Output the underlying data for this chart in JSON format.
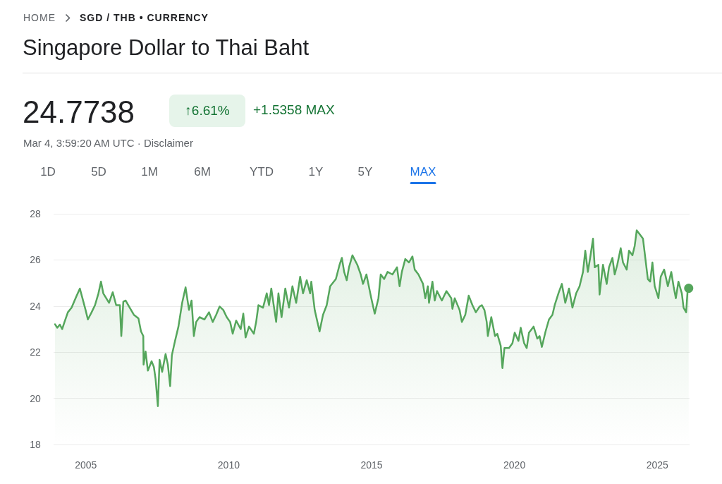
{
  "chart_data": {
    "type": "area",
    "title": "Singapore Dollar to Thai Baht",
    "annotations": [
      "HOME",
      "SGD / THB • CURRENCY",
      "24.7738",
      "↑6.61%",
      "+1.5358 MAX",
      "Mar 4, 3:59:20 AM UTC · Disclaimer",
      "1D",
      "5D",
      "1M",
      "6M",
      "YTD",
      "1Y",
      "5Y",
      "MAX"
    ],
    "x": [
      2003.92,
      2004.0,
      2004.09,
      2004.17,
      2004.25,
      2004.37,
      2004.5,
      2004.66,
      2004.79,
      2004.88,
      2004.99,
      2005.07,
      2005.2,
      2005.32,
      2005.44,
      2005.53,
      2005.61,
      2005.81,
      2005.94,
      2006.06,
      2006.19,
      2006.24,
      2006.31,
      2006.39,
      2006.51,
      2006.68,
      2006.84,
      2006.93,
      2007.01,
      2007.02,
      2007.09,
      2007.17,
      2007.3,
      2007.38,
      2007.44,
      2007.52,
      2007.58,
      2007.67,
      2007.79,
      2007.87,
      2007.95,
      2008.01,
      2008.12,
      2008.24,
      2008.37,
      2008.49,
      2008.61,
      2008.7,
      2008.78,
      2008.86,
      2008.98,
      2009.15,
      2009.31,
      2009.44,
      2009.56,
      2009.68,
      2009.81,
      2009.93,
      2010.05,
      2010.14,
      2010.26,
      2010.42,
      2010.51,
      2010.59,
      2010.71,
      2010.88,
      2010.96,
      2011.04,
      2011.2,
      2011.33,
      2011.41,
      2011.49,
      2011.66,
      2011.74,
      2011.85,
      2011.98,
      2012.11,
      2012.23,
      2012.36,
      2012.5,
      2012.6,
      2012.73,
      2012.85,
      2012.89,
      2013.01,
      2013.18,
      2013.3,
      2013.43,
      2013.55,
      2013.75,
      2013.88,
      2013.96,
      2014.04,
      2014.13,
      2014.21,
      2014.33,
      2014.5,
      2014.62,
      2014.7,
      2014.82,
      2014.99,
      2015.11,
      2015.24,
      2015.32,
      2015.44,
      2015.56,
      2015.73,
      2015.89,
      2015.98,
      2016.06,
      2016.18,
      2016.31,
      2016.43,
      2016.51,
      2016.64,
      2016.8,
      2016.88,
      2016.97,
      2017.01,
      2017.13,
      2017.21,
      2017.29,
      2017.46,
      2017.62,
      2017.79,
      2017.83,
      2017.91,
      2018.08,
      2018.16,
      2018.28,
      2018.4,
      2018.53,
      2018.65,
      2018.78,
      2018.86,
      2018.95,
      2019.03,
      2019.07,
      2019.19,
      2019.32,
      2019.4,
      2019.52,
      2019.58,
      2019.65,
      2019.81,
      2019.93,
      2020.01,
      2020.14,
      2020.22,
      2020.34,
      2020.43,
      2020.51,
      2020.67,
      2020.8,
      2020.88,
      2020.96,
      2021.09,
      2021.21,
      2021.33,
      2021.41,
      2021.54,
      2021.66,
      2021.78,
      2021.91,
      2022.03,
      2022.16,
      2022.28,
      2022.4,
      2022.48,
      2022.57,
      2022.65,
      2022.75,
      2022.81,
      2022.94,
      2022.98,
      2023.1,
      2023.23,
      2023.31,
      2023.43,
      2023.51,
      2023.6,
      2023.72,
      2023.8,
      2023.93,
      2024.01,
      2024.13,
      2024.21,
      2024.28,
      2024.38,
      2024.5,
      2024.58,
      2024.67,
      2024.75,
      2024.83,
      2024.91,
      2025.04,
      2025.12,
      2025.24,
      2025.37,
      2025.49,
      2025.57,
      2025.65,
      2025.74,
      2025.86,
      2025.92,
      2026.01,
      2026.06,
      2026.1
    ],
    "series": [
      {
        "color": "#55a65c",
        "values": [
          23.21,
          23.06,
          23.2,
          23.0,
          23.3,
          23.73,
          23.93,
          24.4,
          24.76,
          24.34,
          23.83,
          23.42,
          23.73,
          24.04,
          24.55,
          25.06,
          24.55,
          24.14,
          24.6,
          24.04,
          24.04,
          22.7,
          24.19,
          24.24,
          23.98,
          23.62,
          23.47,
          22.9,
          22.7,
          21.46,
          22.03,
          21.2,
          21.61,
          21.36,
          20.84,
          19.66,
          21.67,
          21.15,
          21.92,
          21.46,
          20.53,
          21.87,
          22.49,
          23.11,
          24.14,
          24.81,
          23.83,
          24.24,
          22.7,
          23.31,
          23.52,
          23.42,
          23.73,
          23.31,
          23.62,
          23.98,
          23.83,
          23.52,
          23.31,
          22.8,
          23.37,
          23.0,
          23.67,
          22.64,
          23.11,
          22.8,
          23.31,
          24.04,
          23.93,
          24.55,
          24.04,
          24.76,
          23.31,
          24.55,
          23.52,
          24.76,
          23.93,
          24.86,
          24.14,
          25.27,
          24.55,
          25.12,
          24.55,
          25.06,
          23.83,
          22.9,
          23.62,
          24.04,
          24.86,
          25.17,
          25.79,
          26.09,
          25.48,
          25.12,
          25.68,
          26.2,
          25.79,
          25.37,
          24.96,
          25.37,
          24.34,
          23.67,
          24.34,
          25.37,
          25.17,
          25.48,
          25.37,
          25.68,
          24.86,
          25.48,
          26.04,
          25.89,
          26.15,
          25.58,
          25.37,
          24.96,
          24.34,
          24.86,
          24.14,
          25.06,
          24.24,
          24.65,
          24.24,
          24.65,
          24.34,
          23.88,
          24.34,
          23.83,
          23.31,
          23.62,
          24.45,
          24.04,
          23.73,
          23.98,
          24.04,
          23.83,
          23.31,
          22.7,
          23.52,
          22.7,
          22.8,
          22.28,
          21.31,
          22.18,
          22.18,
          22.39,
          22.85,
          22.49,
          23.06,
          22.39,
          22.18,
          22.85,
          23.11,
          22.59,
          22.7,
          22.23,
          22.9,
          23.42,
          23.62,
          24.04,
          24.55,
          24.96,
          24.14,
          24.76,
          23.93,
          24.55,
          24.86,
          25.48,
          26.4,
          25.48,
          26.09,
          26.92,
          25.68,
          25.79,
          24.5,
          25.79,
          24.96,
          25.68,
          26.09,
          25.37,
          25.79,
          26.51,
          25.89,
          25.58,
          26.4,
          26.2,
          26.61,
          27.28,
          27.12,
          26.92,
          26.09,
          25.17,
          25.06,
          25.89,
          24.86,
          24.34,
          25.27,
          25.58,
          24.86,
          25.48,
          24.86,
          24.34,
          25.06,
          24.55,
          23.93,
          23.73,
          24.65,
          24.77
        ]
      }
    ],
    "xlim": [
      2003.87,
      2026.13
    ],
    "xticks": [
      2005,
      2010,
      2015,
      2020,
      2025
    ],
    "ylim": [
      18,
      28
    ],
    "yticks": [
      18,
      20,
      22,
      24,
      26,
      28
    ],
    "grid": "y",
    "marker": "none",
    "line_style": "solid"
  }
}
